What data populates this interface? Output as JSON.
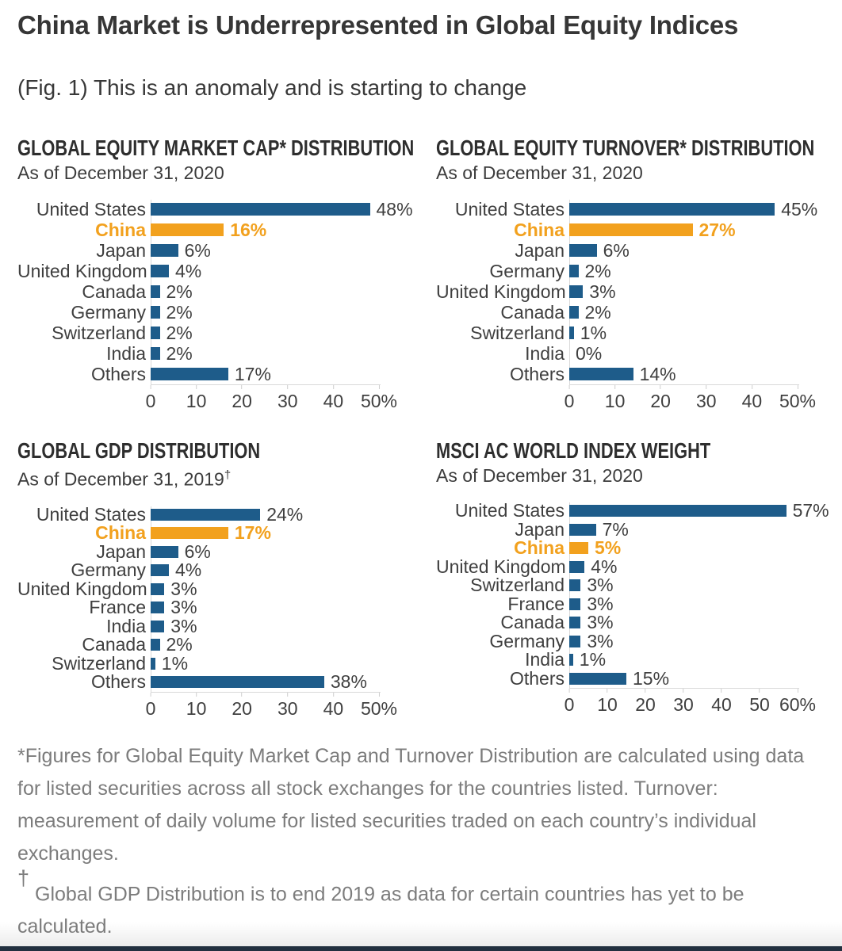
{
  "header": {
    "title": "China Market is Underrepresented in Global Equity Indices",
    "caption": "(Fig. 1) This is an anomaly and is starting to change"
  },
  "colors": {
    "bar_blue": "#1E5C8A",
    "bar_orange": "#F2A11E",
    "highlight_text": "#F2A11E",
    "title_text": "#363636",
    "label_text": "#3F3F3F",
    "footnote_text": "#7C7C7C",
    "axis_gray": "#D9D9D9",
    "bottom_strip": "#22303F"
  },
  "chart_data": [
    {
      "type": "bar",
      "orientation": "horizontal",
      "title": "GLOBAL EQUITY MARKET CAP* DISTRIBUTION",
      "subtitle": "As of December 31, 2020",
      "categories": [
        "United States",
        "China",
        "Japan",
        "United Kingdom",
        "Canada",
        "Germany",
        "Switzerland",
        "India",
        "Others"
      ],
      "values": [
        48,
        16,
        6,
        4,
        2,
        2,
        2,
        2,
        17
      ],
      "highlight_category": "China",
      "xlim": [
        0,
        50
      ],
      "ticks": [
        0,
        10,
        20,
        30,
        40,
        50
      ],
      "tick_labels": [
        "0",
        "10",
        "20",
        "30",
        "40",
        "50%"
      ],
      "grid": false,
      "legend": "none"
    },
    {
      "type": "bar",
      "orientation": "horizontal",
      "title": "GLOBAL EQUITY TURNOVER* DISTRIBUTION",
      "subtitle": "As of December 31, 2020",
      "categories": [
        "United States",
        "China",
        "Japan",
        "Germany",
        "United Kingdom",
        "Canada",
        "Switzerland",
        "India",
        "Others"
      ],
      "values": [
        45,
        27,
        6,
        2,
        3,
        2,
        1,
        0,
        14
      ],
      "highlight_category": "China",
      "xlim": [
        0,
        50
      ],
      "ticks": [
        0,
        10,
        20,
        30,
        40,
        50
      ],
      "tick_labels": [
        "0",
        "10",
        "20",
        "30",
        "40",
        "50%"
      ],
      "grid": false,
      "legend": "none"
    },
    {
      "type": "bar",
      "orientation": "horizontal",
      "title": "GLOBAL GDP DISTRIBUTION",
      "subtitle": "As of December 31, 2019",
      "subtitle_sup": "†",
      "categories": [
        "United States",
        "China",
        "Japan",
        "Germany",
        "United Kingdom",
        "France",
        "India",
        "Canada",
        "Switzerland",
        "Others"
      ],
      "values": [
        24,
        17,
        6,
        4,
        3,
        3,
        3,
        2,
        1,
        38
      ],
      "highlight_category": "China",
      "xlim": [
        0,
        50
      ],
      "ticks": [
        0,
        10,
        20,
        30,
        40,
        50
      ],
      "tick_labels": [
        "0",
        "10",
        "20",
        "30",
        "40",
        "50%"
      ],
      "grid": false,
      "legend": "none"
    },
    {
      "type": "bar",
      "orientation": "horizontal",
      "title": "MSCI AC WORLD INDEX WEIGHT",
      "subtitle": "As of December 31, 2020",
      "categories": [
        "United States",
        "Japan",
        "China",
        "United Kingdom",
        "Switzerland",
        "France",
        "Canada",
        "Germany",
        "India",
        "Others"
      ],
      "values": [
        57,
        7,
        5,
        4,
        3,
        3,
        3,
        3,
        1,
        15
      ],
      "highlight_category": "China",
      "xlim": [
        0,
        60
      ],
      "ticks": [
        0,
        10,
        20,
        30,
        40,
        50,
        60
      ],
      "tick_labels": [
        "0",
        "10",
        "20",
        "30",
        "40",
        "50",
        "60%"
      ],
      "grid": false,
      "legend": "none"
    }
  ],
  "footnotes": {
    "asterisk": "*Figures for Global Equity Market Cap and Turnover Distribution are calculated using data for listed securities across all stock exchanges for the countries listed. Turnover: measurement of daily volume for listed securities traded on each country’s individual exchanges.",
    "dagger_symbol": "†",
    "dagger_text": "Global GDP Distribution is to end 2019 as data for certain countries has yet to be calculated."
  }
}
